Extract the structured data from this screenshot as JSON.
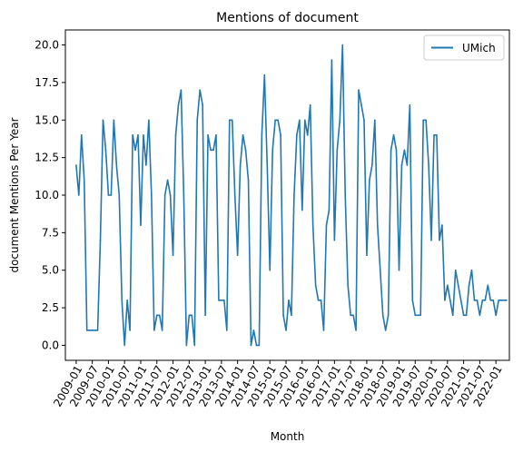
{
  "chart_data": {
    "type": "line",
    "title": "Mentions of document",
    "xlabel": "Month",
    "ylabel": "document Mentions Per Year",
    "ylim": [
      -1.0,
      21.0
    ],
    "yticks": [
      "0.0",
      "2.5",
      "5.0",
      "7.5",
      "10.0",
      "12.5",
      "15.0",
      "17.5",
      "20.0"
    ],
    "ytick_values": [
      0,
      2.5,
      5,
      7.5,
      10,
      12.5,
      15,
      17.5,
      20
    ],
    "xticks": [
      "2009-01",
      "2009-07",
      "2010-01",
      "2010-07",
      "2011-01",
      "2011-07",
      "2012-01",
      "2012-07",
      "2013-01",
      "2013-07",
      "2014-01",
      "2014-07",
      "2015-01",
      "2015-07",
      "2016-01",
      "2016-07",
      "2017-01",
      "2017-07",
      "2018-01",
      "2018-07",
      "2019-01",
      "2019-07",
      "2020-01",
      "2020-07",
      "2021-01",
      "2021-07",
      "2022-01"
    ],
    "xtick_months": [
      0,
      6,
      12,
      18,
      24,
      30,
      36,
      42,
      48,
      54,
      60,
      66,
      72,
      78,
      84,
      90,
      96,
      102,
      108,
      114,
      120,
      126,
      132,
      138,
      144,
      150,
      156
    ],
    "xlim_months": [
      -4,
      161
    ],
    "legend": {
      "entries": [
        "UMich"
      ],
      "placement": "upper right"
    },
    "series": [
      {
        "name": "UMich",
        "color": "#1f77b4",
        "x_start": "2009-01",
        "values": [
          12,
          10,
          14,
          11,
          1,
          1,
          1,
          1,
          1,
          7,
          15,
          13,
          10,
          10,
          15,
          12,
          10,
          3,
          0,
          3,
          1,
          14,
          13,
          14,
          8,
          14,
          12,
          15,
          10,
          1,
          2,
          2,
          1,
          10,
          11,
          10,
          6,
          14,
          16,
          17,
          10,
          0,
          2,
          2,
          0,
          15,
          17,
          16,
          2,
          14,
          13,
          13,
          14,
          3,
          3,
          3,
          1,
          15,
          15,
          10,
          6,
          12,
          14,
          13,
          11,
          0,
          1,
          0,
          0,
          14,
          18,
          12,
          5,
          13,
          15,
          15,
          14,
          2,
          1,
          3,
          2,
          10,
          14,
          15,
          9,
          15,
          14,
          16,
          8,
          4,
          3,
          3,
          1,
          8,
          9,
          19,
          7,
          13,
          15,
          20,
          10,
          4,
          2,
          2,
          1,
          17,
          16,
          15,
          6,
          11,
          12,
          15,
          8,
          5,
          2,
          1,
          2,
          13,
          14,
          13,
          5,
          12,
          13,
          12,
          16,
          3,
          2,
          2,
          2,
          15,
          15,
          12,
          7,
          14,
          14,
          7,
          8,
          3,
          4,
          3,
          2,
          5,
          4,
          3,
          2,
          2,
          4,
          5,
          3,
          3,
          2,
          3,
          3,
          4,
          3,
          3,
          2,
          3,
          3,
          3,
          3
        ]
      }
    ]
  }
}
